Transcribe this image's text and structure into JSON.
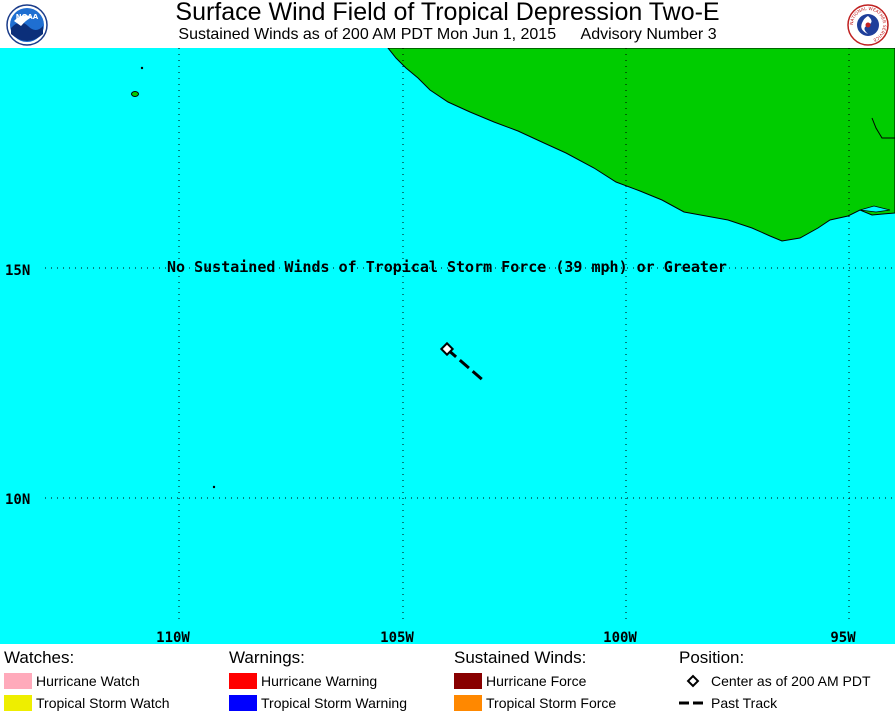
{
  "header": {
    "title": "Surface Wind Field of Tropical Depression Two-E",
    "subtitle_time": "Sustained Winds as of 200 AM PDT Mon Jun 1, 2015",
    "subtitle_advisory": "Advisory Number 3",
    "left_logo_text": "NOAA",
    "right_logo_text": "NATIONAL WEATHER SERVICE"
  },
  "map": {
    "ocean_color": "#00ffff",
    "land_color": "#00cc00",
    "message": "No Sustained Winds of Tropical Storm Force (39 mph) or Greater",
    "lat_labels": [
      "15N",
      "10N"
    ],
    "lon_labels": [
      "110W",
      "105W",
      "100W",
      "95W"
    ]
  },
  "legend": {
    "watches": {
      "heading": "Watches:",
      "items": [
        {
          "label": "Hurricane Watch",
          "color": "#ffaabb"
        },
        {
          "label": "Tropical Storm Watch",
          "color": "#eeee00"
        }
      ]
    },
    "warnings": {
      "heading": "Warnings:",
      "items": [
        {
          "label": "Hurricane Warning",
          "color": "#ff0000"
        },
        {
          "label": "Tropical Storm Warning",
          "color": "#0000ff"
        }
      ]
    },
    "winds": {
      "heading": "Sustained Winds:",
      "items": [
        {
          "label": "Hurricane Force",
          "color": "#880000"
        },
        {
          "label": "Tropical Storm Force",
          "color": "#ff8800"
        }
      ]
    },
    "position": {
      "heading": "Position:",
      "items": [
        {
          "label": "Center as of 200 AM PDT",
          "icon": "diamond-icon"
        },
        {
          "label": "Past Track",
          "icon": "dashed-line-icon"
        }
      ]
    }
  }
}
